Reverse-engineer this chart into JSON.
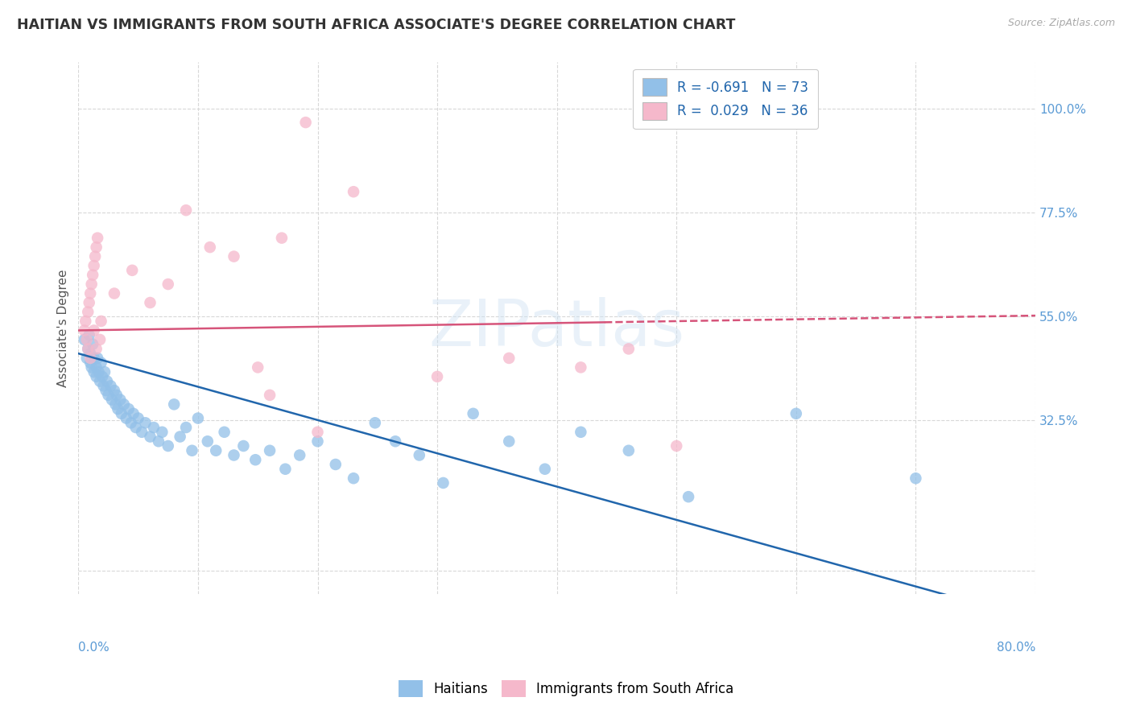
{
  "title": "HAITIAN VS IMMIGRANTS FROM SOUTH AFRICA ASSOCIATE'S DEGREE CORRELATION CHART",
  "source": "Source: ZipAtlas.com",
  "ylabel": "Associate's Degree",
  "xlim": [
    0.0,
    0.8
  ],
  "ylim": [
    -0.05,
    1.1
  ],
  "blue_color": "#92c0e8",
  "pink_color": "#f5b8cb",
  "blue_line_color": "#2166ac",
  "pink_line_color": "#d6547a",
  "background_color": "#ffffff",
  "grid_color": "#d8d8d8",
  "title_fontsize": 12.5,
  "axis_label_fontsize": 11,
  "tick_fontsize": 11,
  "watermark_text": "ZIPatlas",
  "ytick_values": [
    0.0,
    0.325,
    0.55,
    0.775,
    1.0
  ],
  "ytick_labels": [
    "",
    "32.5%",
    "55.0%",
    "77.5%",
    "100.0%"
  ],
  "blue_intercept": 0.47,
  "blue_slope": -0.72,
  "pink_intercept": 0.52,
  "pink_slope": 0.04,
  "haitians_x": [
    0.005,
    0.007,
    0.008,
    0.009,
    0.01,
    0.01,
    0.011,
    0.012,
    0.013,
    0.013,
    0.015,
    0.015,
    0.016,
    0.017,
    0.018,
    0.019,
    0.02,
    0.021,
    0.022,
    0.023,
    0.024,
    0.025,
    0.027,
    0.028,
    0.03,
    0.031,
    0.032,
    0.033,
    0.035,
    0.036,
    0.038,
    0.04,
    0.042,
    0.044,
    0.046,
    0.048,
    0.05,
    0.053,
    0.056,
    0.06,
    0.063,
    0.067,
    0.07,
    0.075,
    0.08,
    0.085,
    0.09,
    0.095,
    0.1,
    0.108,
    0.115,
    0.122,
    0.13,
    0.138,
    0.148,
    0.16,
    0.173,
    0.185,
    0.2,
    0.215,
    0.23,
    0.248,
    0.265,
    0.285,
    0.305,
    0.33,
    0.36,
    0.39,
    0.42,
    0.46,
    0.51,
    0.6,
    0.7
  ],
  "haitians_y": [
    0.5,
    0.46,
    0.48,
    0.51,
    0.47,
    0.45,
    0.44,
    0.49,
    0.43,
    0.46,
    0.44,
    0.42,
    0.46,
    0.43,
    0.41,
    0.45,
    0.42,
    0.4,
    0.43,
    0.39,
    0.41,
    0.38,
    0.4,
    0.37,
    0.39,
    0.36,
    0.38,
    0.35,
    0.37,
    0.34,
    0.36,
    0.33,
    0.35,
    0.32,
    0.34,
    0.31,
    0.33,
    0.3,
    0.32,
    0.29,
    0.31,
    0.28,
    0.3,
    0.27,
    0.36,
    0.29,
    0.31,
    0.26,
    0.33,
    0.28,
    0.26,
    0.3,
    0.25,
    0.27,
    0.24,
    0.26,
    0.22,
    0.25,
    0.28,
    0.23,
    0.2,
    0.32,
    0.28,
    0.25,
    0.19,
    0.34,
    0.28,
    0.22,
    0.3,
    0.26,
    0.16,
    0.34,
    0.2
  ],
  "sa_x": [
    0.005,
    0.006,
    0.007,
    0.008,
    0.008,
    0.009,
    0.01,
    0.01,
    0.011,
    0.012,
    0.013,
    0.013,
    0.014,
    0.015,
    0.015,
    0.016,
    0.018,
    0.019,
    0.19,
    0.23,
    0.03,
    0.045,
    0.06,
    0.075,
    0.09,
    0.11,
    0.13,
    0.15,
    0.17,
    0.3,
    0.36,
    0.42,
    0.46,
    0.5,
    0.16,
    0.2
  ],
  "sa_y": [
    0.52,
    0.54,
    0.5,
    0.56,
    0.48,
    0.58,
    0.46,
    0.6,
    0.62,
    0.64,
    0.52,
    0.66,
    0.68,
    0.48,
    0.7,
    0.72,
    0.5,
    0.54,
    0.97,
    0.82,
    0.6,
    0.65,
    0.58,
    0.62,
    0.78,
    0.7,
    0.68,
    0.44,
    0.72,
    0.42,
    0.46,
    0.44,
    0.48,
    0.27,
    0.38,
    0.3
  ]
}
